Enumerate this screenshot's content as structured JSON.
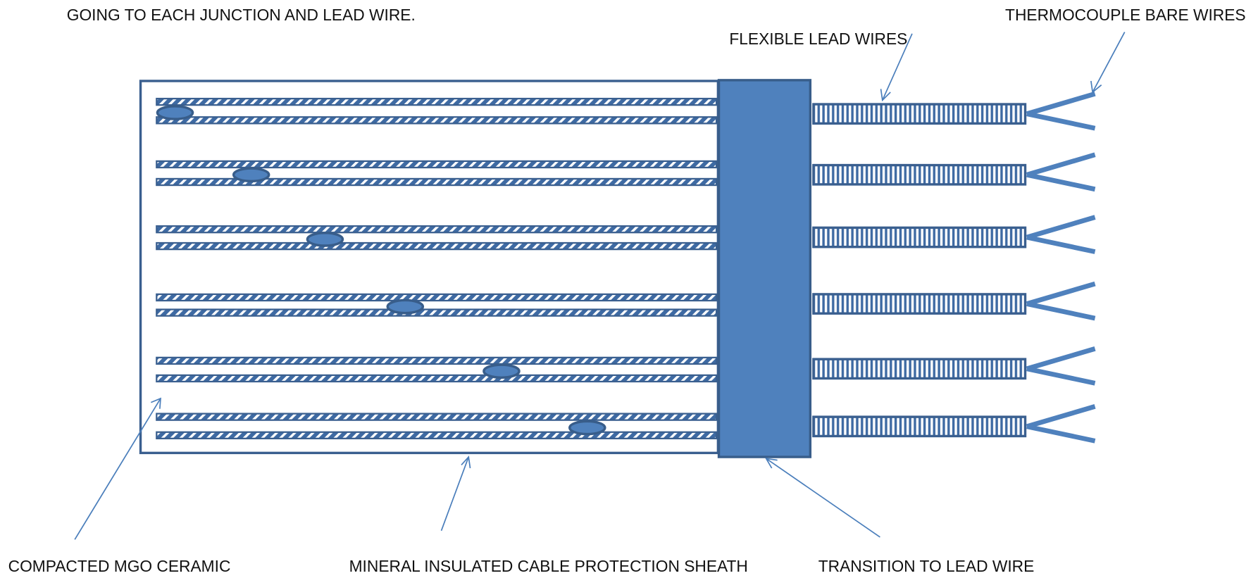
{
  "labels": {
    "top_note": "GOING TO EACH JUNCTION AND LEAD WIRE.",
    "flexible_lead_wires": "FLEXIBLE LEAD WIRES",
    "bare_wires": "THERMOCOUPLE BARE WIRES",
    "mgo": "COMPACTED MGO CERAMIC",
    "sheath": "MINERAL INSULATED CABLE PROTECTION SHEATH",
    "transition": "TRANSITION TO LEAD WIRE"
  }
}
